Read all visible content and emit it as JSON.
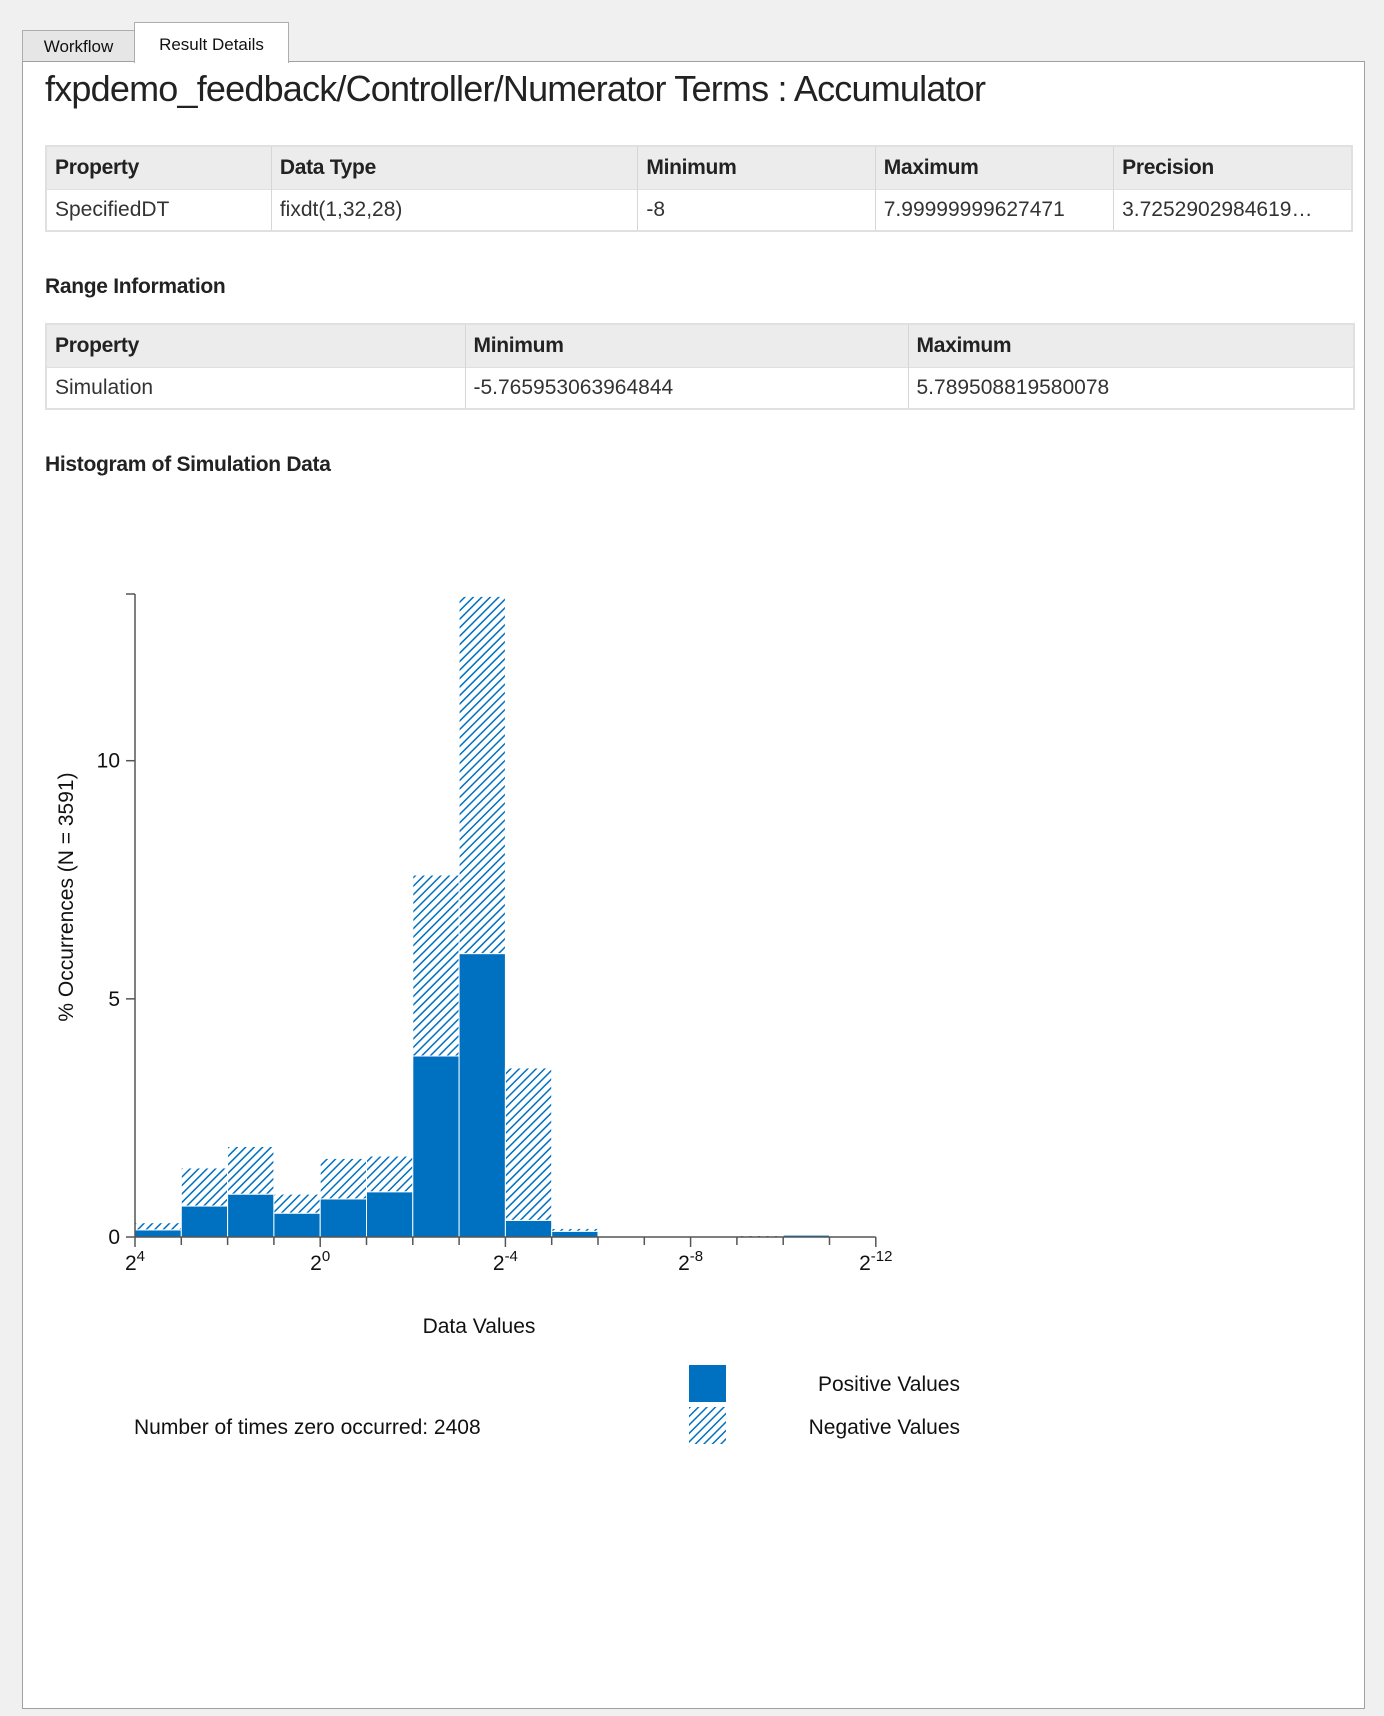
{
  "tabs": [
    {
      "label": "Workflow",
      "active": false
    },
    {
      "label": "Result Details",
      "active": true
    }
  ],
  "title": "fxpdemo_feedback/Controller/Numerator Terms : Accumulator",
  "type_table": {
    "headers": [
      "Property",
      "Data Type",
      "Minimum",
      "Maximum",
      "Precision"
    ],
    "rows": [
      [
        "SpecifiedDT",
        "fixdt(1,32,28)",
        "-8",
        "7.99999999627471",
        "3.7252902984619…"
      ]
    ]
  },
  "range_section_label": "Range Information",
  "range_table": {
    "headers": [
      "Property",
      "Minimum",
      "Maximum"
    ],
    "rows": [
      [
        "Simulation",
        "-5.765953063964844",
        "5.789508819580078"
      ]
    ]
  },
  "histogram_section_label": "Histogram of Simulation Data",
  "colors": {
    "positive": "#0070c0",
    "negative_hatch": "#0070c0",
    "axis": "#555555"
  },
  "chart_data": {
    "type": "bar",
    "stacked": true,
    "ylabel": "% Occurrences (N = 3591)",
    "xlabel": "Data Values",
    "y_ticks": [
      0,
      5,
      10
    ],
    "ylim": [
      0,
      13.5
    ],
    "x_axis_exponents": [
      4,
      3,
      2,
      1,
      0,
      -1,
      -2,
      -3,
      -4,
      -5,
      -6,
      -7,
      -8,
      -9,
      -10,
      -11,
      -12
    ],
    "x_tick_labels": [
      {
        "base": "2",
        "exp": "4",
        "at_exponent": 4
      },
      {
        "base": "2",
        "exp": "0",
        "at_exponent": 0
      },
      {
        "base": "2",
        "exp": "-4",
        "at_exponent": -4
      },
      {
        "base": "2",
        "exp": "-8",
        "at_exponent": -8
      },
      {
        "base": "2",
        "exp": "-12",
        "at_exponent": -12
      }
    ],
    "bins": [
      {
        "upper_exponent": 3,
        "positive": 0.15,
        "negative": 0.15
      },
      {
        "upper_exponent": 2,
        "positive": 0.65,
        "negative": 0.8
      },
      {
        "upper_exponent": 1,
        "positive": 0.9,
        "negative": 1.0
      },
      {
        "upper_exponent": 0,
        "positive": 0.5,
        "negative": 0.4
      },
      {
        "upper_exponent": -1,
        "positive": 0.8,
        "negative": 0.85
      },
      {
        "upper_exponent": -2,
        "positive": 0.95,
        "negative": 0.75
      },
      {
        "upper_exponent": -3,
        "positive": 3.8,
        "negative": 3.8
      },
      {
        "upper_exponent": -4,
        "positive": 5.95,
        "negative": 7.5
      },
      {
        "upper_exponent": -5,
        "positive": 0.35,
        "negative": 3.2
      },
      {
        "upper_exponent": -6,
        "positive": 0.12,
        "negative": 0.06
      },
      {
        "upper_exponent": -8,
        "positive": 0.02,
        "negative": 0.0
      },
      {
        "upper_exponent": -10,
        "positive": 0.0,
        "negative": 0.03
      },
      {
        "upper_exponent": -11,
        "positive": 0.04,
        "negative": 0.0
      }
    ],
    "series": [
      {
        "name": "Positive Values",
        "style": "solid"
      },
      {
        "name": "Negative Values",
        "style": "hatched"
      }
    ],
    "zero_count_label": "Number of times zero occurred: 2408"
  }
}
